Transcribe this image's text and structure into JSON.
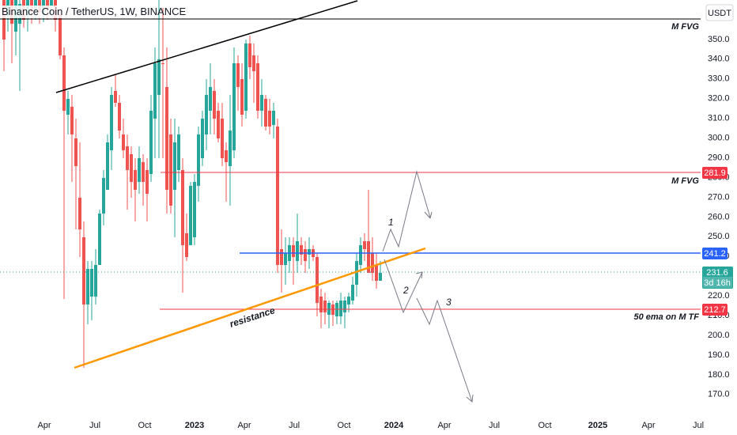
{
  "header": {
    "symbol_title": "Binance Coin / TetherUS, 1W, BINANCE"
  },
  "price_axis": {
    "unit": "USDT",
    "ticks": [
      "350.0",
      "340.0",
      "330.0",
      "320.0",
      "310.0",
      "300.0",
      "290.0",
      "280.0",
      "270.0",
      "260.0",
      "250.0",
      "240.0",
      "230.0",
      "220.0",
      "210.0",
      "200.0",
      "190.0",
      "180.0",
      "170.0"
    ]
  },
  "chart_data": {
    "type": "candlestick",
    "title": "Binance Coin / TetherUS, 1W, BINANCE",
    "ylim": [
      163,
      367
    ],
    "grid": false,
    "x_ticks": [
      "Apr",
      "Jul",
      "Oct",
      "2023",
      "Apr",
      "Jul",
      "Oct",
      "2024",
      "Apr",
      "Jul",
      "Oct",
      "2025",
      "Apr",
      "Jul"
    ],
    "x_tick_dates": [
      "2022-04",
      "2022-07",
      "2022-10",
      "2023-01",
      "2023-04",
      "2023-07",
      "2023-10",
      "2024-01",
      "2024-04",
      "2024-07",
      "2024-10",
      "2025-01",
      "2025-04",
      "2025-07"
    ],
    "current_price": {
      "value": "231.6",
      "countdown": "3d 16h",
      "price": 231.6
    },
    "levels": [
      {
        "label": "M FVG",
        "price": 365,
        "color": "#000000"
      },
      {
        "label": "M FVG",
        "badge": "281.9",
        "price": 281.9,
        "color": "#f23645"
      },
      {
        "badge": "241.2",
        "price": 241.2,
        "color": "#2962ff"
      },
      {
        "label": "50 ema on M TF",
        "badge": "212.7",
        "price": 212.7,
        "color": "#f23645"
      }
    ],
    "drawings": {
      "resistance_label": "resistance",
      "wave_labels": [
        "1",
        "2",
        "3"
      ]
    },
    "colors": {
      "up": "#26a69a",
      "down": "#ef5350",
      "support": "#ff9800",
      "current": "#26a69a"
    }
  }
}
